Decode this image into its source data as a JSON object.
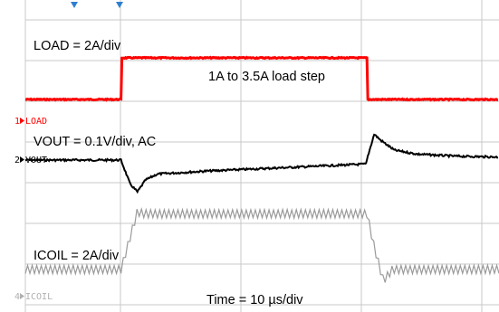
{
  "chart_data": {
    "type": "line",
    "title": "",
    "grid": true,
    "time_scale": "Time = 10 µs/div",
    "annotation": "1A to 3.5A load step",
    "series": [
      {
        "name": "LOAD",
        "scale": "LOAD = 2A/div",
        "color": "#ff0000",
        "description_values": {
          "low_level_A": 1,
          "high_level_A": 3.5
        },
        "points": [
          [
            0,
            1
          ],
          [
            10.5,
            1
          ],
          [
            10.6,
            3.5
          ],
          [
            37.5,
            3.5
          ],
          [
            37.6,
            1
          ],
          [
            52,
            1
          ]
        ]
      },
      {
        "name": "VOUT",
        "scale": "VOUT = 0.1V/div, AC",
        "color": "#000000",
        "points": [
          [
            0,
            0
          ],
          [
            10.5,
            0
          ],
          [
            11.5,
            -0.12
          ],
          [
            12.3,
            -0.16
          ],
          [
            13.2,
            -0.1
          ],
          [
            14.5,
            -0.07
          ],
          [
            20,
            -0.055
          ],
          [
            30,
            -0.035
          ],
          [
            37.4,
            -0.02
          ],
          [
            37.6,
            0.02
          ],
          [
            38.3,
            0.13
          ],
          [
            39,
            0.1
          ],
          [
            40.5,
            0.05
          ],
          [
            43,
            0.03
          ],
          [
            47,
            0.02
          ],
          [
            52,
            0.015
          ]
        ]
      },
      {
        "name": "ICOIL",
        "scale": "ICOIL = 2A/div",
        "color": "#9a9a9a",
        "points": [
          [
            0,
            1
          ],
          [
            10.5,
            1
          ],
          [
            12.3,
            3.6
          ],
          [
            13,
            3.5
          ],
          [
            37.5,
            3.5
          ],
          [
            38.3,
            2
          ],
          [
            39.3,
            0.5
          ],
          [
            40.3,
            1
          ],
          [
            52,
            1
          ]
        ]
      }
    ],
    "x_unit": "µs",
    "xlim": [
      0,
      52
    ]
  },
  "labels": {
    "load_scale": "LOAD = 2A/div",
    "vout_scale": "VOUT = 0.1V/div, AC",
    "icoil_scale": "ICOIL = 2A/div",
    "step_note": "1A to 3.5A load step",
    "time_scale": "Time = 10 µs/div",
    "ch1_marker": "1",
    "ch1_name": "LOAD",
    "ch2_marker": "2",
    "ch2_name": "VOUT",
    "ch4_marker": "4",
    "ch4_name": "ICOIL"
  },
  "colors": {
    "load": "#ff0000",
    "vout": "#000000",
    "icoil": "#9a9a9a",
    "grid": "#c8c8c8",
    "marker": "#2f7fcf"
  }
}
